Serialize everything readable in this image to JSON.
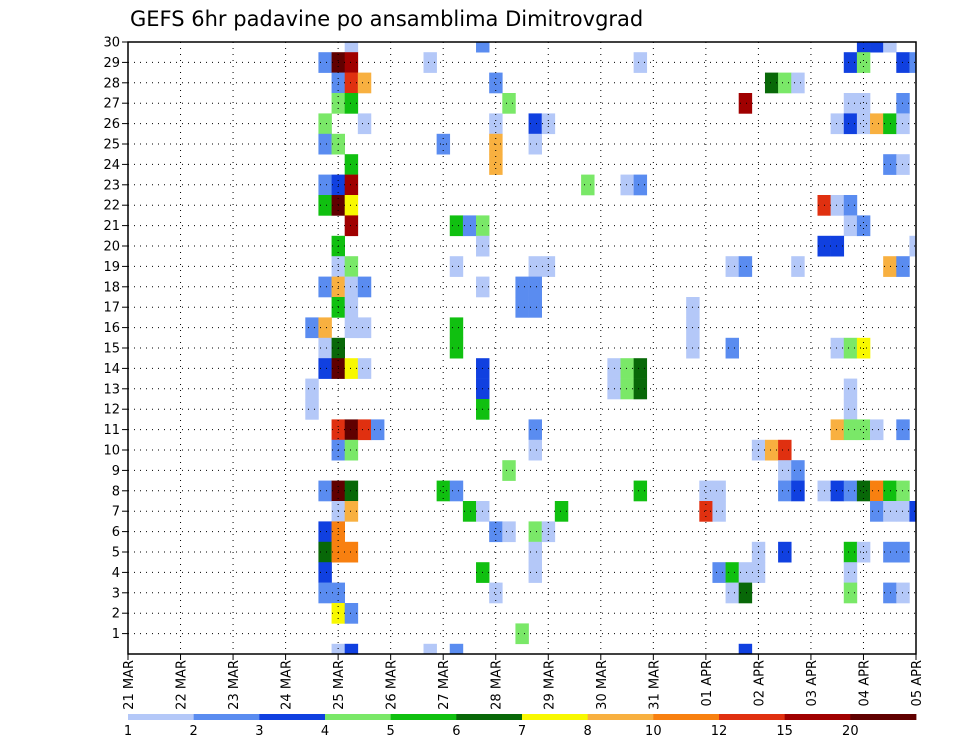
{
  "chart_data": {
    "type": "heatmap",
    "title": "GEFS 6hr padavine po ansamblima Dimitrovgrad",
    "x_tick_labels": [
      "21 MAR",
      "22 MAR",
      "23 MAR",
      "24 MAR",
      "25 MAR",
      "26 MAR",
      "27 MAR",
      "28 MAR",
      "29 MAR",
      "30 MAR",
      "31 MAR",
      "01 APR",
      "02 APR",
      "03 APR",
      "04 APR",
      "05 APR"
    ],
    "y_tick_labels": [
      "1",
      "2",
      "3",
      "4",
      "5",
      "6",
      "7",
      "8",
      "9",
      "10",
      "11",
      "12",
      "13",
      "14",
      "15",
      "16",
      "17",
      "18",
      "19",
      "20",
      "21",
      "22",
      "23",
      "24",
      "25",
      "26",
      "27",
      "28",
      "29",
      "30"
    ],
    "xlim_steps": [
      0,
      60
    ],
    "ylim_members": [
      0,
      30
    ],
    "grid": true,
    "grid_style": "dotted",
    "colorbar": {
      "labels": [
        "1",
        "2",
        "3",
        "4",
        "5",
        "6",
        "7",
        "8",
        "10",
        "12",
        "15",
        "20"
      ],
      "colors": [
        "#b4c8f8",
        "#5a8cf0",
        "#1040e0",
        "#7ae868",
        "#10c010",
        "#086808",
        "#f8f800",
        "#f8b040",
        "#f88010",
        "#e03010",
        "#a00000",
        "#600000"
      ]
    },
    "cells": [
      {
        "m": 30,
        "s": 17,
        "c": 0
      },
      {
        "m": 30,
        "s": 27,
        "c": 1
      },
      {
        "m": 30,
        "s": 56,
        "c": 2
      },
      {
        "m": 30,
        "s": 57,
        "c": 2
      },
      {
        "m": 30,
        "s": 58,
        "c": 0
      },
      {
        "m": 29,
        "s": 15,
        "c": 1
      },
      {
        "m": 29,
        "s": 16,
        "c": 11
      },
      {
        "m": 29,
        "s": 17,
        "c": 10
      },
      {
        "m": 29,
        "s": 23,
        "c": 0
      },
      {
        "m": 29,
        "s": 39,
        "c": 0
      },
      {
        "m": 29,
        "s": 55,
        "c": 2
      },
      {
        "m": 29,
        "s": 56,
        "c": 3
      },
      {
        "m": 29,
        "s": 59,
        "c": 2
      },
      {
        "m": 29,
        "s": 60,
        "c": 1
      },
      {
        "m": 28,
        "s": 16,
        "c": 1
      },
      {
        "m": 28,
        "s": 17,
        "c": 9
      },
      {
        "m": 28,
        "s": 18,
        "c": 7
      },
      {
        "m": 28,
        "s": 28,
        "c": 1
      },
      {
        "m": 28,
        "s": 49,
        "c": 5
      },
      {
        "m": 28,
        "s": 50,
        "c": 3
      },
      {
        "m": 28,
        "s": 51,
        "c": 0
      },
      {
        "m": 27,
        "s": 16,
        "c": 3
      },
      {
        "m": 27,
        "s": 17,
        "c": 4
      },
      {
        "m": 27,
        "s": 29,
        "c": 3
      },
      {
        "m": 27,
        "s": 47,
        "c": 10
      },
      {
        "m": 27,
        "s": 55,
        "c": 0
      },
      {
        "m": 27,
        "s": 56,
        "c": 0
      },
      {
        "m": 27,
        "s": 59,
        "c": 1
      },
      {
        "m": 26,
        "s": 15,
        "c": 3
      },
      {
        "m": 26,
        "s": 18,
        "c": 0
      },
      {
        "m": 26,
        "s": 28,
        "c": 0
      },
      {
        "m": 26,
        "s": 31,
        "c": 2
      },
      {
        "m": 26,
        "s": 32,
        "c": 0
      },
      {
        "m": 26,
        "s": 54,
        "c": 0
      },
      {
        "m": 26,
        "s": 55,
        "c": 2
      },
      {
        "m": 26,
        "s": 56,
        "c": 0
      },
      {
        "m": 26,
        "s": 57,
        "c": 7
      },
      {
        "m": 26,
        "s": 58,
        "c": 4
      },
      {
        "m": 26,
        "s": 59,
        "c": 0
      },
      {
        "m": 25,
        "s": 15,
        "c": 1
      },
      {
        "m": 25,
        "s": 16,
        "c": 3
      },
      {
        "m": 25,
        "s": 24,
        "c": 1
      },
      {
        "m": 25,
        "s": 28,
        "c": 7
      },
      {
        "m": 25,
        "s": 31,
        "c": 0
      },
      {
        "m": 24,
        "s": 17,
        "c": 4
      },
      {
        "m": 24,
        "s": 28,
        "c": 7
      },
      {
        "m": 24,
        "s": 58,
        "c": 1
      },
      {
        "m": 24,
        "s": 59,
        "c": 0
      },
      {
        "m": 23,
        "s": 15,
        "c": 1
      },
      {
        "m": 23,
        "s": 16,
        "c": 2
      },
      {
        "m": 23,
        "s": 17,
        "c": 10
      },
      {
        "m": 23,
        "s": 35,
        "c": 3
      },
      {
        "m": 23,
        "s": 38,
        "c": 0
      },
      {
        "m": 23,
        "s": 39,
        "c": 1
      },
      {
        "m": 22,
        "s": 15,
        "c": 4
      },
      {
        "m": 22,
        "s": 16,
        "c": 11
      },
      {
        "m": 22,
        "s": 17,
        "c": 6
      },
      {
        "m": 22,
        "s": 53,
        "c": 9
      },
      {
        "m": 22,
        "s": 54,
        "c": 0
      },
      {
        "m": 22,
        "s": 55,
        "c": 1
      },
      {
        "m": 21,
        "s": 17,
        "c": 10
      },
      {
        "m": 21,
        "s": 25,
        "c": 4
      },
      {
        "m": 21,
        "s": 26,
        "c": 1
      },
      {
        "m": 21,
        "s": 27,
        "c": 3
      },
      {
        "m": 21,
        "s": 55,
        "c": 0
      },
      {
        "m": 21,
        "s": 56,
        "c": 1
      },
      {
        "m": 20,
        "s": 16,
        "c": 4
      },
      {
        "m": 20,
        "s": 27,
        "c": 0
      },
      {
        "m": 20,
        "s": 53,
        "c": 2
      },
      {
        "m": 20,
        "s": 54,
        "c": 2
      },
      {
        "m": 20,
        "s": 60,
        "c": 0
      },
      {
        "m": 19,
        "s": 16,
        "c": 0
      },
      {
        "m": 19,
        "s": 17,
        "c": 3
      },
      {
        "m": 19,
        "s": 25,
        "c": 0
      },
      {
        "m": 19,
        "s": 31,
        "c": 0
      },
      {
        "m": 19,
        "s": 32,
        "c": 0
      },
      {
        "m": 19,
        "s": 46,
        "c": 0
      },
      {
        "m": 19,
        "s": 47,
        "c": 1
      },
      {
        "m": 19,
        "s": 51,
        "c": 0
      },
      {
        "m": 19,
        "s": 58,
        "c": 7
      },
      {
        "m": 19,
        "s": 59,
        "c": 1
      },
      {
        "m": 18,
        "s": 15,
        "c": 1
      },
      {
        "m": 18,
        "s": 16,
        "c": 7
      },
      {
        "m": 18,
        "s": 17,
        "c": 0
      },
      {
        "m": 18,
        "s": 18,
        "c": 1
      },
      {
        "m": 18,
        "s": 27,
        "c": 0
      },
      {
        "m": 18,
        "s": 30,
        "c": 1
      },
      {
        "m": 18,
        "s": 31,
        "c": 1
      },
      {
        "m": 17,
        "s": 16,
        "c": 4
      },
      {
        "m": 17,
        "s": 17,
        "c": 0
      },
      {
        "m": 17,
        "s": 30,
        "c": 1
      },
      {
        "m": 17,
        "s": 31,
        "c": 1
      },
      {
        "m": 17,
        "s": 43,
        "c": 0
      },
      {
        "m": 16,
        "s": 14,
        "c": 1
      },
      {
        "m": 16,
        "s": 15,
        "c": 7
      },
      {
        "m": 16,
        "s": 17,
        "c": 0
      },
      {
        "m": 16,
        "s": 18,
        "c": 0
      },
      {
        "m": 16,
        "s": 25,
        "c": 4
      },
      {
        "m": 16,
        "s": 43,
        "c": 0
      },
      {
        "m": 15,
        "s": 15,
        "c": 0
      },
      {
        "m": 15,
        "s": 16,
        "c": 5
      },
      {
        "m": 15,
        "s": 25,
        "c": 4
      },
      {
        "m": 15,
        "s": 43,
        "c": 0
      },
      {
        "m": 15,
        "s": 46,
        "c": 1
      },
      {
        "m": 15,
        "s": 54,
        "c": 0
      },
      {
        "m": 15,
        "s": 55,
        "c": 3
      },
      {
        "m": 15,
        "s": 56,
        "c": 6
      },
      {
        "m": 14,
        "s": 15,
        "c": 2
      },
      {
        "m": 14,
        "s": 16,
        "c": 11
      },
      {
        "m": 14,
        "s": 17,
        "c": 6
      },
      {
        "m": 14,
        "s": 18,
        "c": 0
      },
      {
        "m": 14,
        "s": 27,
        "c": 2
      },
      {
        "m": 14,
        "s": 37,
        "c": 0
      },
      {
        "m": 14,
        "s": 38,
        "c": 3
      },
      {
        "m": 14,
        "s": 39,
        "c": 5
      },
      {
        "m": 13,
        "s": 14,
        "c": 0
      },
      {
        "m": 13,
        "s": 27,
        "c": 2
      },
      {
        "m": 13,
        "s": 37,
        "c": 0
      },
      {
        "m": 13,
        "s": 38,
        "c": 3
      },
      {
        "m": 13,
        "s": 39,
        "c": 5
      },
      {
        "m": 13,
        "s": 55,
        "c": 0
      },
      {
        "m": 12,
        "s": 14,
        "c": 0
      },
      {
        "m": 12,
        "s": 27,
        "c": 4
      },
      {
        "m": 12,
        "s": 55,
        "c": 0
      },
      {
        "m": 11,
        "s": 16,
        "c": 9
      },
      {
        "m": 11,
        "s": 17,
        "c": 11
      },
      {
        "m": 11,
        "s": 18,
        "c": 9
      },
      {
        "m": 11,
        "s": 19,
        "c": 1
      },
      {
        "m": 11,
        "s": 31,
        "c": 1
      },
      {
        "m": 11,
        "s": 54,
        "c": 7
      },
      {
        "m": 11,
        "s": 55,
        "c": 3
      },
      {
        "m": 11,
        "s": 56,
        "c": 3
      },
      {
        "m": 11,
        "s": 57,
        "c": 0
      },
      {
        "m": 11,
        "s": 59,
        "c": 1
      },
      {
        "m": 10,
        "s": 16,
        "c": 1
      },
      {
        "m": 10,
        "s": 17,
        "c": 3
      },
      {
        "m": 10,
        "s": 31,
        "c": 0
      },
      {
        "m": 10,
        "s": 48,
        "c": 0
      },
      {
        "m": 10,
        "s": 49,
        "c": 7
      },
      {
        "m": 10,
        "s": 50,
        "c": 9
      },
      {
        "m": 9,
        "s": 29,
        "c": 3
      },
      {
        "m": 9,
        "s": 50,
        "c": 0
      },
      {
        "m": 9,
        "s": 51,
        "c": 1
      },
      {
        "m": 8,
        "s": 15,
        "c": 1
      },
      {
        "m": 8,
        "s": 16,
        "c": 11
      },
      {
        "m": 8,
        "s": 17,
        "c": 5
      },
      {
        "m": 8,
        "s": 24,
        "c": 4
      },
      {
        "m": 8,
        "s": 25,
        "c": 1
      },
      {
        "m": 8,
        "s": 39,
        "c": 4
      },
      {
        "m": 8,
        "s": 44,
        "c": 0
      },
      {
        "m": 8,
        "s": 45,
        "c": 0
      },
      {
        "m": 8,
        "s": 50,
        "c": 1
      },
      {
        "m": 8,
        "s": 51,
        "c": 2
      },
      {
        "m": 8,
        "s": 53,
        "c": 0
      },
      {
        "m": 8,
        "s": 54,
        "c": 2
      },
      {
        "m": 8,
        "s": 55,
        "c": 1
      },
      {
        "m": 8,
        "s": 56,
        "c": 5
      },
      {
        "m": 8,
        "s": 57,
        "c": 8
      },
      {
        "m": 8,
        "s": 58,
        "c": 4
      },
      {
        "m": 8,
        "s": 59,
        "c": 3
      },
      {
        "m": 7,
        "s": 16,
        "c": 0
      },
      {
        "m": 7,
        "s": 17,
        "c": 7
      },
      {
        "m": 7,
        "s": 26,
        "c": 4
      },
      {
        "m": 7,
        "s": 27,
        "c": 0
      },
      {
        "m": 7,
        "s": 33,
        "c": 4
      },
      {
        "m": 7,
        "s": 44,
        "c": 9
      },
      {
        "m": 7,
        "s": 45,
        "c": 0
      },
      {
        "m": 7,
        "s": 57,
        "c": 1
      },
      {
        "m": 7,
        "s": 58,
        "c": 0
      },
      {
        "m": 7,
        "s": 59,
        "c": 0
      },
      {
        "m": 7,
        "s": 60,
        "c": 2
      },
      {
        "m": 6,
        "s": 15,
        "c": 2
      },
      {
        "m": 6,
        "s": 16,
        "c": 8
      },
      {
        "m": 6,
        "s": 28,
        "c": 1
      },
      {
        "m": 6,
        "s": 29,
        "c": 0
      },
      {
        "m": 6,
        "s": 31,
        "c": 3
      },
      {
        "m": 6,
        "s": 32,
        "c": 0
      },
      {
        "m": 5,
        "s": 15,
        "c": 5
      },
      {
        "m": 5,
        "s": 16,
        "c": 8
      },
      {
        "m": 5,
        "s": 17,
        "c": 8
      },
      {
        "m": 5,
        "s": 31,
        "c": 0
      },
      {
        "m": 5,
        "s": 48,
        "c": 0
      },
      {
        "m": 5,
        "s": 50,
        "c": 2
      },
      {
        "m": 5,
        "s": 55,
        "c": 4
      },
      {
        "m": 5,
        "s": 56,
        "c": 0
      },
      {
        "m": 5,
        "s": 58,
        "c": 1
      },
      {
        "m": 5,
        "s": 59,
        "c": 1
      },
      {
        "m": 4,
        "s": 15,
        "c": 2
      },
      {
        "m": 4,
        "s": 27,
        "c": 4
      },
      {
        "m": 4,
        "s": 31,
        "c": 0
      },
      {
        "m": 4,
        "s": 45,
        "c": 1
      },
      {
        "m": 4,
        "s": 46,
        "c": 4
      },
      {
        "m": 4,
        "s": 47,
        "c": 0
      },
      {
        "m": 4,
        "s": 48,
        "c": 0
      },
      {
        "m": 4,
        "s": 55,
        "c": 0
      },
      {
        "m": 3,
        "s": 15,
        "c": 1
      },
      {
        "m": 3,
        "s": 16,
        "c": 1
      },
      {
        "m": 3,
        "s": 28,
        "c": 0
      },
      {
        "m": 3,
        "s": 46,
        "c": 0
      },
      {
        "m": 3,
        "s": 47,
        "c": 5
      },
      {
        "m": 3,
        "s": 55,
        "c": 3
      },
      {
        "m": 3,
        "s": 58,
        "c": 1
      },
      {
        "m": 3,
        "s": 59,
        "c": 0
      },
      {
        "m": 2,
        "s": 16,
        "c": 6
      },
      {
        "m": 2,
        "s": 17,
        "c": 1
      },
      {
        "m": 1,
        "s": 30,
        "c": 3
      },
      {
        "m": 0,
        "s": 16,
        "c": 0
      },
      {
        "m": 0,
        "s": 17,
        "c": 2
      },
      {
        "m": 0,
        "s": 23,
        "c": 0
      },
      {
        "m": 0,
        "s": 25,
        "c": 1
      },
      {
        "m": 0,
        "s": 47,
        "c": 2
      }
    ]
  }
}
